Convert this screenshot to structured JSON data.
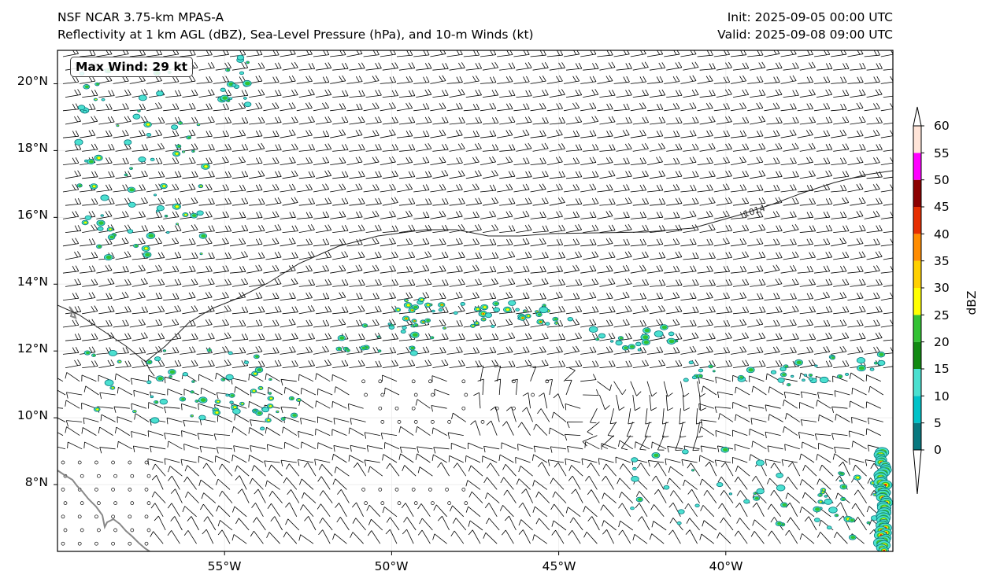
{
  "header": {
    "model": "NSF NCAR 3.75-km MPAS-A",
    "fields": "Reflectivity at 1 km AGL (dBZ), Sea-Level Pressure (hPa), and 10-m Winds (kt)",
    "init": "Init: 2025-09-05 00:00 UTC",
    "valid": "Valid: 2025-09-08 09:00 UTC"
  },
  "badge": "Max Wind: 29 kt",
  "axes": {
    "lat_ticks": [
      "20°N",
      "18°N",
      "16°N",
      "14°N",
      "12°N",
      "10°N",
      "8°N"
    ],
    "lon_ticks": [
      "55°W",
      "50°W",
      "45°W",
      "40°W"
    ]
  },
  "map_extent": {
    "lon_min": -60.0,
    "lon_max": -35.0,
    "lat_min": 6.0,
    "lat_max": 21.0
  },
  "isobar": {
    "label": "1014"
  },
  "colorbar": {
    "label": "dBZ",
    "ticks": [
      "0",
      "5",
      "10",
      "15",
      "20",
      "25",
      "30",
      "35",
      "40",
      "45",
      "50",
      "55",
      "60"
    ],
    "colors": [
      "#08787f",
      "#00c2c8",
      "#4be0d0",
      "#118a12",
      "#33c233",
      "#ffff00",
      "#ffd000",
      "#ff8c00",
      "#e62e00",
      "#8b0000",
      "#ff00ff",
      "#ffe4d8"
    ]
  }
}
